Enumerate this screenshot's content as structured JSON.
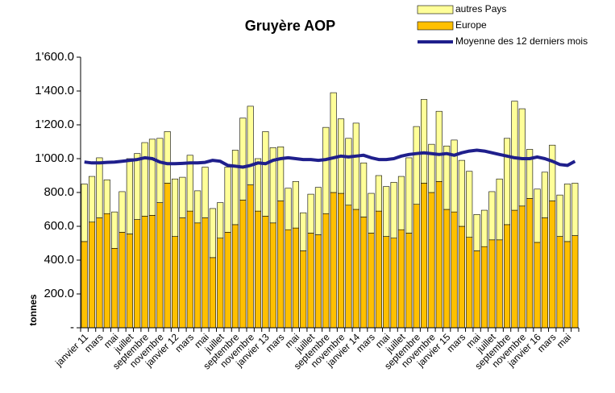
{
  "chart_data": {
    "type": "bar",
    "title": "Gruyère AOP",
    "y_label": "tonnes",
    "categories": [
      "janvier 11",
      null,
      "mars",
      null,
      "mai",
      null,
      "juillet",
      null,
      "septembre",
      null,
      "novembre",
      null,
      "janvier 12",
      null,
      "mars",
      null,
      "mai",
      null,
      "juillet",
      null,
      "septembre",
      null,
      "novembre",
      null,
      "janvier 13",
      null,
      "mars",
      null,
      "mai",
      null,
      "juillet",
      null,
      "septembre",
      null,
      "novembre",
      null,
      "janvier 14",
      null,
      "mars",
      null,
      "mai",
      null,
      "juillet",
      null,
      "septembre",
      null,
      "novembre",
      null,
      "janvier 15",
      null,
      "mars",
      null,
      "mai",
      null,
      "juillet",
      null,
      "septembre",
      null,
      "novembre",
      null,
      "janvier 16",
      null,
      "mars",
      null,
      "mai",
      null
    ],
    "series": [
      {
        "name": "autres Pays",
        "color": "#FFFF99",
        "values": [
          340,
          270,
          355,
          200,
          215,
          240,
          445,
          390,
          435,
          450,
          380,
          305,
          340,
          240,
          330,
          190,
          300,
          290,
          210,
          385,
          440,
          485,
          465,
          310,
          500,
          445,
          320,
          245,
          275,
          225,
          230,
          280,
          510,
          590,
          440,
          395,
          510,
          320,
          235,
          210,
          295,
          330,
          315,
          445,
          460,
          495,
          285,
          415,
          375,
          425,
          390,
          390,
          215,
          215,
          285,
          360,
          510,
          645,
          575,
          290,
          315,
          270,
          330,
          245,
          340,
          310
        ]
      },
      {
        "name": "Europe",
        "color": "#FFC000",
        "values": [
          510,
          625,
          650,
          675,
          470,
          565,
          555,
          640,
          660,
          665,
          740,
          855,
          540,
          650,
          690,
          620,
          650,
          415,
          530,
          565,
          610,
          755,
          845,
          690,
          660,
          620,
          750,
          580,
          590,
          455,
          560,
          550,
          675,
          800,
          795,
          725,
          700,
          655,
          560,
          690,
          540,
          530,
          580,
          560,
          730,
          855,
          800,
          865,
          700,
          685,
          600,
          535,
          455,
          480,
          520,
          520,
          610,
          695,
          720,
          765,
          505,
          650,
          750,
          540,
          510,
          545
        ]
      },
      {
        "name": "Moyenne des 12 derniers mois",
        "type": "line",
        "color": "#1F1F8C",
        "values": [
          980,
          975,
          975,
          978,
          980,
          985,
          990,
          995,
          1005,
          1000,
          980,
          970,
          970,
          972,
          975,
          975,
          978,
          990,
          985,
          960,
          955,
          950,
          960,
          975,
          970,
          990,
          1000,
          1005,
          1000,
          995,
          995,
          990,
          995,
          1005,
          1015,
          1010,
          1015,
          1020,
          1005,
          995,
          995,
          1000,
          1015,
          1025,
          1030,
          1035,
          1030,
          1025,
          1030,
          1020,
          1035,
          1045,
          1050,
          1045,
          1035,
          1025,
          1015,
          1005,
          1000,
          1000,
          1010,
          1000,
          985,
          965,
          960,
          985
        ]
      }
    ],
    "ylim": [
      0,
      1600
    ],
    "yticks": [
      {
        "value": 0,
        "label": "-"
      },
      {
        "value": 200,
        "label": "200.0"
      },
      {
        "value": 400,
        "label": "400.0"
      },
      {
        "value": 600,
        "label": "600.0"
      },
      {
        "value": 800,
        "label": "800.0"
      },
      {
        "value": 1000,
        "label": "1'000.0"
      },
      {
        "value": 1200,
        "label": "1'200.0"
      },
      {
        "value": 1400,
        "label": "1'400.0"
      },
      {
        "value": 1600,
        "label": "1'600.0"
      }
    ],
    "legend": "top-right"
  }
}
